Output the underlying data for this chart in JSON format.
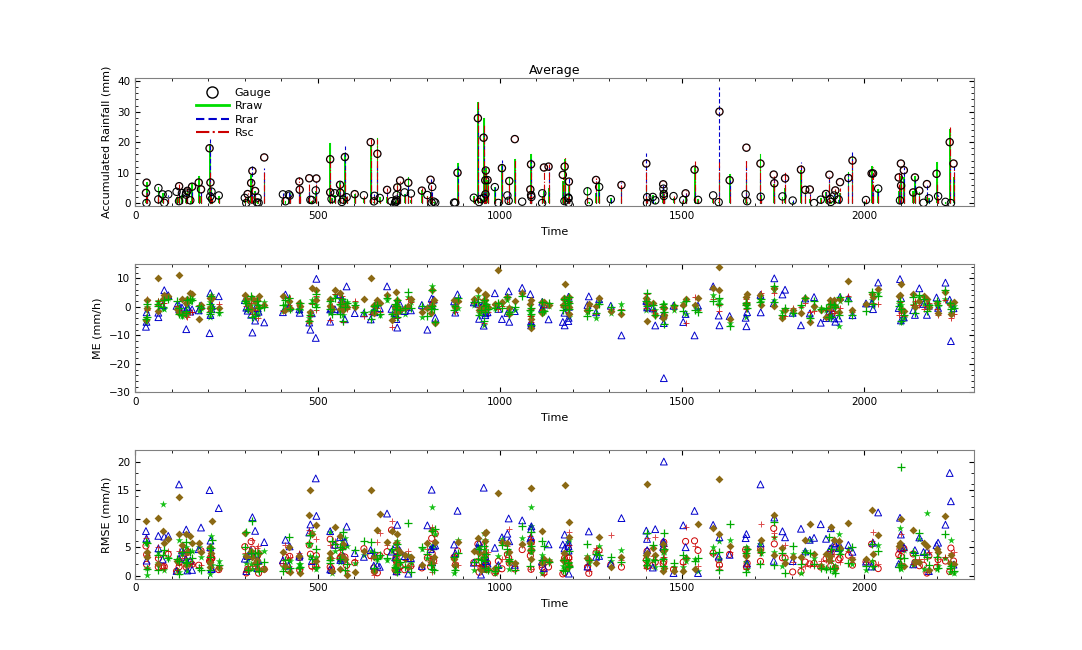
{
  "title": "Average",
  "subplot1": {
    "ylabel": "Accumulated Rainfall (mm)",
    "xlabel": "Time",
    "ylim": [
      -1,
      41
    ],
    "yticks": [
      0,
      10,
      20,
      30,
      40
    ]
  },
  "subplot2": {
    "ylabel": "ME (mm/h)",
    "xlabel": "Time",
    "ylim": [
      -30,
      15
    ],
    "yticks": [
      -30,
      -20,
      -10,
      0,
      10
    ]
  },
  "subplot3": {
    "ylabel": "RMSE (mm/h)",
    "xlabel": "Time",
    "ylim": [
      -0.5,
      22
    ],
    "yticks": [
      0,
      5,
      10,
      15,
      20
    ]
  },
  "xlim": [
    0,
    2300
  ],
  "xticks": [
    0,
    500,
    1000,
    1500,
    2000
  ],
  "colors": {
    "gauge": "#000000",
    "rraw": "#00dd00",
    "rrar": "#0000cc",
    "rsc": "#cc0000",
    "diamond": "#8B6914",
    "triangle": "#0000cc",
    "plus_green": "#00aa00",
    "plus_red": "#cc0000",
    "circle_red": "#cc0000",
    "star_green": "#00bb00"
  },
  "legend": {
    "gauge_label": "Gauge",
    "rraw_label": "Rraw",
    "rrar_label": "Rrar",
    "rsc_label": "Rsc"
  }
}
